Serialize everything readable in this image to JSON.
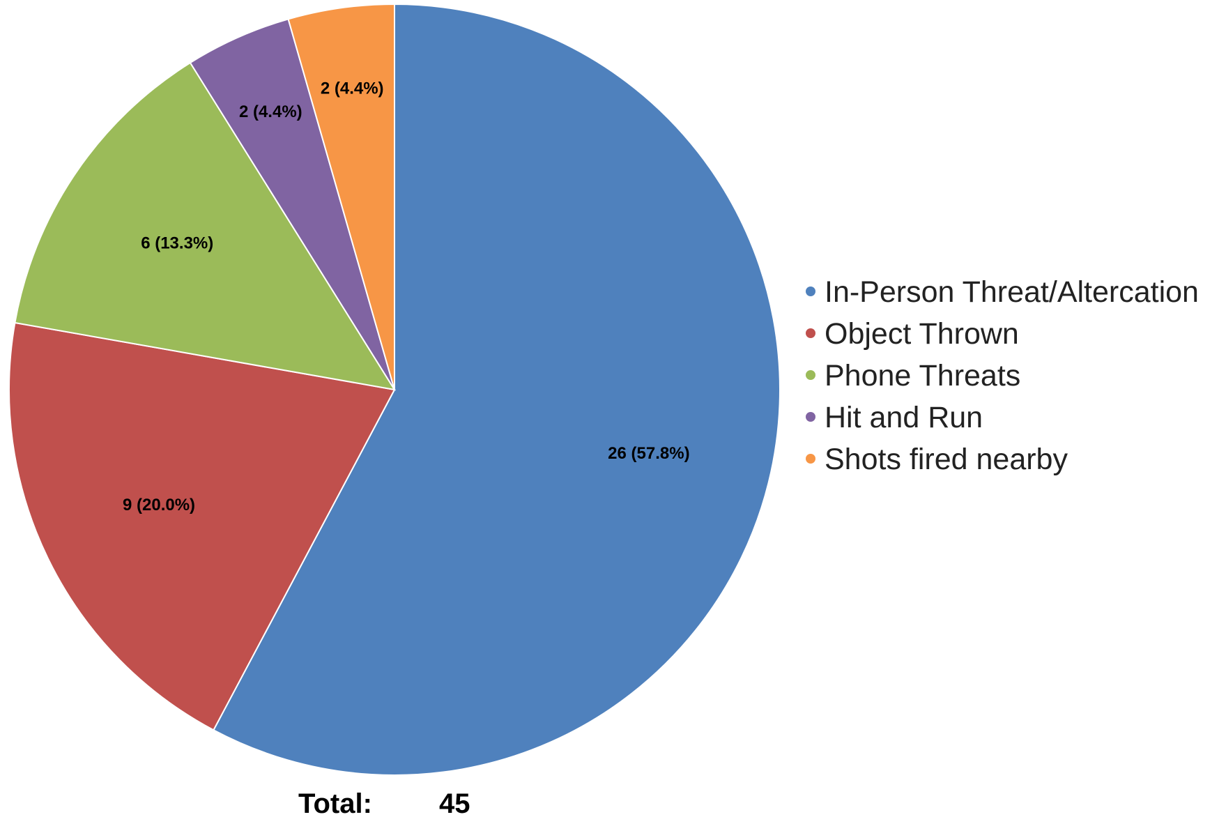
{
  "chart_data": {
    "type": "pie",
    "categories": [
      "In-Person Threat/Altercation",
      "Object Thrown",
      "Phone Threats",
      "Hit and Run",
      "Shots fired nearby"
    ],
    "values": [
      26,
      9,
      6,
      2,
      2
    ],
    "data_labels": [
      "26 (57.8%)",
      "9 (20.0%)",
      "6 (13.3%)",
      "2 (4.4%)",
      "2 (4.4%)"
    ],
    "colors": [
      "#4f81bd",
      "#c0504d",
      "#9bbb59",
      "#8064a2",
      "#f79646"
    ],
    "legend_position": "right",
    "total_label": "Total:",
    "total_value": "45"
  }
}
